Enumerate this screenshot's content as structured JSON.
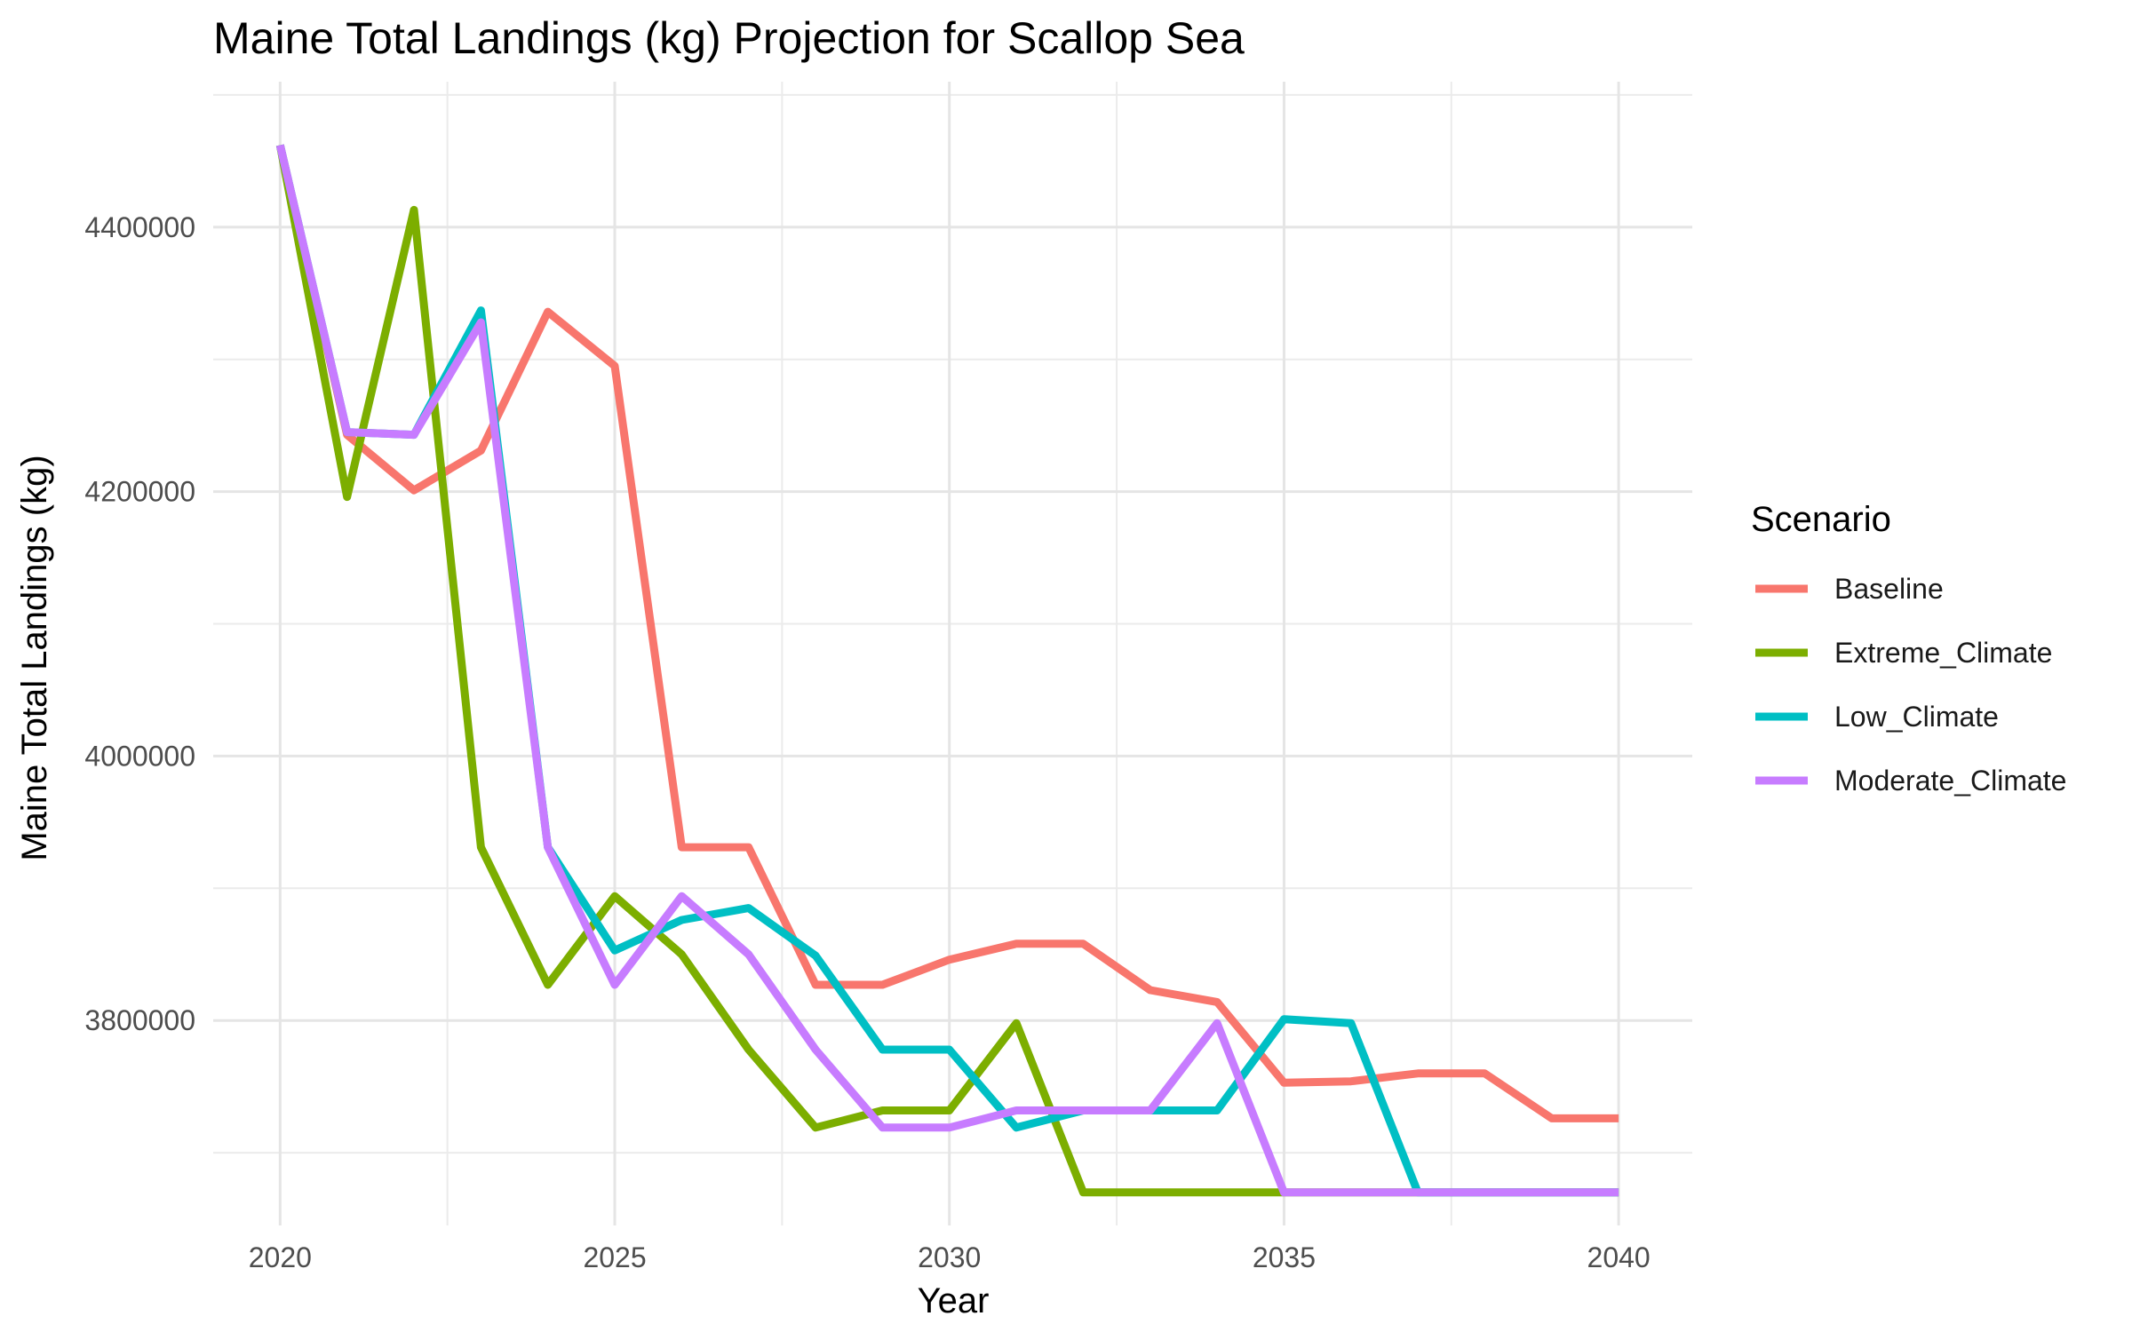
{
  "chart_data": {
    "type": "line",
    "title": "Maine Total Landings (kg) Projection for Scallop Sea",
    "xlabel": "Year",
    "ylabel": "Maine Total Landings (kg)",
    "x": [
      2020,
      2021,
      2022,
      2023,
      2024,
      2025,
      2026,
      2027,
      2028,
      2029,
      2030,
      2031,
      2032,
      2033,
      2034,
      2035,
      2036,
      2037,
      2038,
      2039,
      2040
    ],
    "xlim": [
      2019,
      2041.1
    ],
    "ylim": [
      3645000,
      4510000
    ],
    "x_ticks": [
      2020,
      2025,
      2030,
      2035,
      2040
    ],
    "x_tick_labels": [
      "2020",
      "2025",
      "2030",
      "2035",
      "2040"
    ],
    "y_ticks": [
      3800000,
      4000000,
      4200000,
      4400000
    ],
    "y_tick_labels": [
      "3800000",
      "4000000",
      "4200000",
      "4400000"
    ],
    "grid": true,
    "legend_title": "Scenario",
    "legend_position": "right",
    "series": [
      {
        "name": "Baseline",
        "color": "#F8766D",
        "values": [
          4462000,
          4243000,
          4201000,
          4231000,
          4336000,
          4295000,
          3931000,
          3931000,
          3827000,
          3827000,
          3846000,
          3858000,
          3858000,
          3823000,
          3814000,
          3753000,
          3754000,
          3760000,
          3760000,
          3726000,
          3726000
        ]
      },
      {
        "name": "Extreme_Climate",
        "color": "#7CAE00",
        "values": [
          4462000,
          4196000,
          4413000,
          3931000,
          3827000,
          3894000,
          3850000,
          3778000,
          3719000,
          3732000,
          3732000,
          3798000,
          3670000,
          3670000,
          3670000,
          3670000,
          3670000,
          3670000,
          3670000,
          3670000,
          3670000
        ]
      },
      {
        "name": "Low_Climate",
        "color": "#00BFC4",
        "values": [
          4462000,
          4245000,
          4243000,
          4337000,
          3931000,
          3853000,
          3876000,
          3885000,
          3849000,
          3778000,
          3778000,
          3719000,
          3732000,
          3732000,
          3732000,
          3801000,
          3798000,
          3670000,
          3670000,
          3670000,
          3670000
        ]
      },
      {
        "name": "Moderate_Climate",
        "color": "#C77CFF",
        "values": [
          4462000,
          4245000,
          4243000,
          4328000,
          3931000,
          3827000,
          3894000,
          3850000,
          3778000,
          3719000,
          3719000,
          3732000,
          3732000,
          3732000,
          3798000,
          3670000,
          3670000,
          3670000,
          3670000,
          3670000,
          3670000
        ]
      }
    ]
  }
}
